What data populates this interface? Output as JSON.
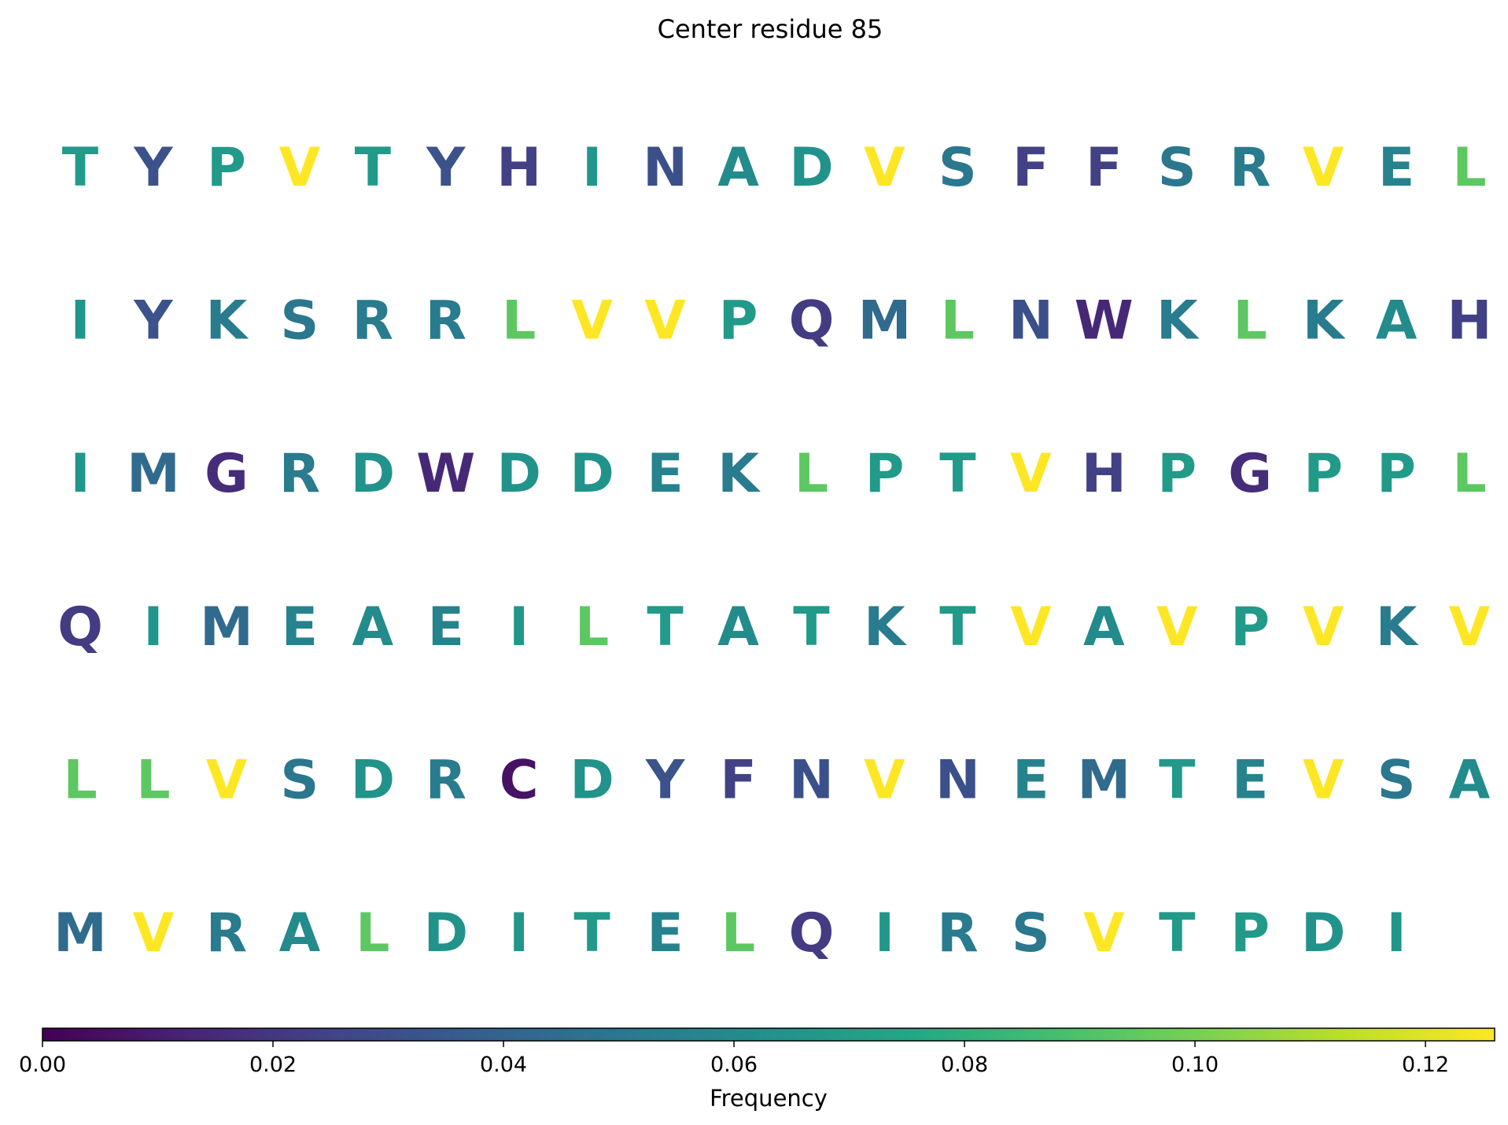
{
  "chart_data": {
    "type": "heatmap",
    "title": "Center residue 85",
    "colormap": "viridis",
    "colorbar": {
      "label": "Frequency",
      "range": [
        0.0,
        0.126
      ],
      "ticks": [
        0.0,
        0.02,
        0.04,
        0.06,
        0.08,
        0.1,
        0.12
      ],
      "tick_labels": [
        "0.00",
        "0.02",
        "0.04",
        "0.06",
        "0.08",
        "0.10",
        "0.12"
      ],
      "placement": "bottom"
    },
    "rows": [
      {
        "letters": [
          "T",
          "Y",
          "P",
          "V",
          "T",
          "Y",
          "H",
          "I",
          "N",
          "A",
          "D",
          "V",
          "S",
          "F",
          "F",
          "S",
          "R",
          "V",
          "E",
          "L"
        ],
        "values": [
          0.068,
          0.032,
          0.068,
          0.126,
          0.068,
          0.032,
          0.024,
          0.066,
          0.031,
          0.06,
          0.064,
          0.126,
          0.05,
          0.024,
          0.024,
          0.05,
          0.052,
          0.126,
          0.056,
          0.094
        ]
      },
      {
        "letters": [
          "I",
          "Y",
          "K",
          "S",
          "R",
          "R",
          "L",
          "V",
          "V",
          "P",
          "Q",
          "M",
          "L",
          "N",
          "W",
          "K",
          "L",
          "K",
          "A",
          "H"
        ],
        "values": [
          0.066,
          0.032,
          0.052,
          0.05,
          0.052,
          0.052,
          0.094,
          0.126,
          0.126,
          0.068,
          0.022,
          0.044,
          0.094,
          0.031,
          0.014,
          0.052,
          0.094,
          0.052,
          0.06,
          0.024
        ]
      },
      {
        "letters": [
          "I",
          "M",
          "G",
          "R",
          "D",
          "W",
          "D",
          "D",
          "E",
          "K",
          "L",
          "P",
          "T",
          "V",
          "H",
          "P",
          "G",
          "P",
          "P",
          "L"
        ],
        "values": [
          0.066,
          0.044,
          0.016,
          0.052,
          0.064,
          0.014,
          0.064,
          0.064,
          0.056,
          0.052,
          0.094,
          0.068,
          0.068,
          0.126,
          0.024,
          0.068,
          0.016,
          0.068,
          0.068,
          0.094
        ]
      },
      {
        "letters": [
          "Q",
          "I",
          "M",
          "E",
          "A",
          "E",
          "I",
          "L",
          "T",
          "A",
          "T",
          "K",
          "T",
          "V",
          "A",
          "V",
          "P",
          "V",
          "K",
          "V"
        ],
        "values": [
          0.022,
          0.066,
          0.044,
          0.056,
          0.06,
          0.056,
          0.066,
          0.094,
          0.068,
          0.06,
          0.068,
          0.052,
          0.068,
          0.126,
          0.06,
          0.126,
          0.068,
          0.126,
          0.052,
          0.126
        ]
      },
      {
        "letters": [
          "L",
          "L",
          "V",
          "S",
          "D",
          "R",
          "C",
          "D",
          "Y",
          "F",
          "N",
          "V",
          "N",
          "E",
          "M",
          "T",
          "E",
          "V",
          "S",
          "A"
        ],
        "values": [
          0.094,
          0.094,
          0.126,
          0.05,
          0.064,
          0.052,
          0.006,
          0.064,
          0.032,
          0.024,
          0.031,
          0.126,
          0.031,
          0.056,
          0.044,
          0.068,
          0.056,
          0.126,
          0.05,
          0.06
        ]
      },
      {
        "letters": [
          "M",
          "V",
          "R",
          "A",
          "L",
          "D",
          "I",
          "T",
          "E",
          "L",
          "Q",
          "I",
          "R",
          "S",
          "V",
          "T",
          "P",
          "D",
          "I"
        ],
        "values": [
          0.044,
          0.126,
          0.052,
          0.06,
          0.094,
          0.064,
          0.066,
          0.068,
          0.056,
          0.094,
          0.022,
          0.066,
          0.052,
          0.05,
          0.126,
          0.068,
          0.068,
          0.064,
          0.066
        ]
      }
    ]
  }
}
